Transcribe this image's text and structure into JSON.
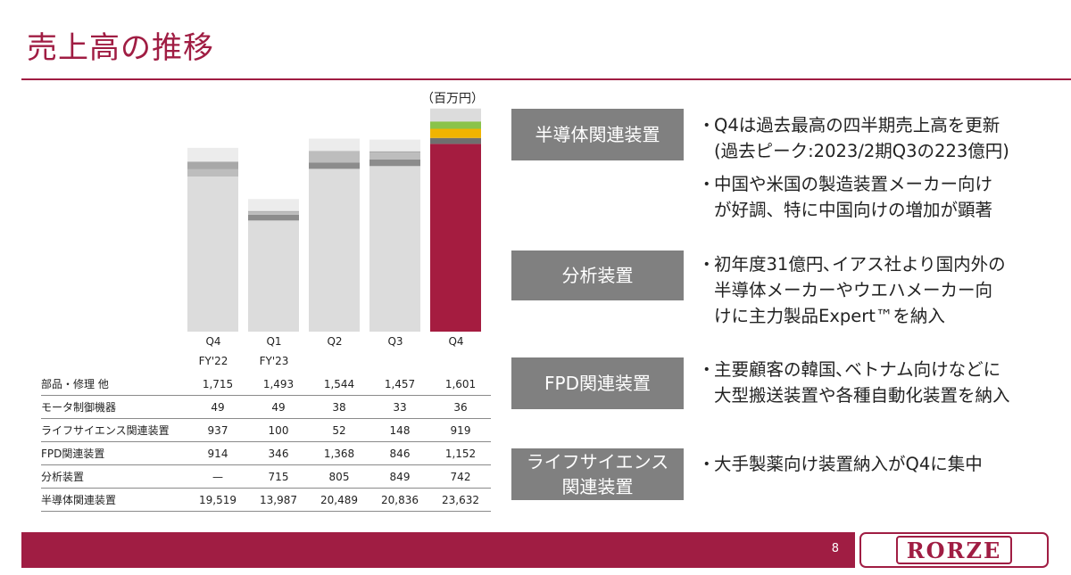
{
  "title": "売上高の推移",
  "unit_label": "（百万円）",
  "quarters": [
    {
      "q": "Q4",
      "fy": "FY'22"
    },
    {
      "q": "Q1",
      "fy": "FY'23"
    },
    {
      "q": "Q2",
      "fy": ""
    },
    {
      "q": "Q3",
      "fy": ""
    },
    {
      "q": "Q4",
      "fy": ""
    }
  ],
  "table_rows": [
    {
      "label": "部品・修理 他",
      "values": [
        "1,715",
        "1,493",
        "1,544",
        "1,457",
        "1,601"
      ]
    },
    {
      "label": "モータ制御機器",
      "values": [
        "49",
        "49",
        "38",
        "33",
        "36"
      ]
    },
    {
      "label": "ライフサイエンス関連装置",
      "values": [
        "937",
        "100",
        "52",
        "148",
        "919"
      ]
    },
    {
      "label": "FPD関連装置",
      "values": [
        "914",
        "346",
        "1,368",
        "846",
        "1,152"
      ]
    },
    {
      "label": "分析装置",
      "values": [
        "—",
        "715",
        "805",
        "849",
        "742"
      ]
    },
    {
      "label": "半導体関連装置",
      "values": [
        "19,519",
        "13,987",
        "20,489",
        "20,836",
        "23,632"
      ]
    }
  ],
  "chart_data": {
    "type": "bar",
    "stacked": true,
    "categories": [
      "Q4 FY'22",
      "Q1 FY'23",
      "Q2",
      "Q3",
      "Q4"
    ],
    "series": [
      {
        "name": "半導体関連装置",
        "values": [
          19519,
          13987,
          20489,
          20836,
          23632
        ]
      },
      {
        "name": "分析装置",
        "values": [
          0,
          715,
          805,
          849,
          742
        ]
      },
      {
        "name": "FPD関連装置",
        "values": [
          914,
          346,
          1368,
          846,
          1152
        ]
      },
      {
        "name": "ライフサイエンス関連装置",
        "values": [
          937,
          100,
          52,
          148,
          919
        ]
      },
      {
        "name": "モータ制御機器",
        "values": [
          49,
          49,
          38,
          33,
          36
        ]
      },
      {
        "name": "部品・修理 他",
        "values": [
          1715,
          1493,
          1544,
          1457,
          1601
        ]
      }
    ],
    "colors_highlight": [
      "#a51c40",
      "#6f6f6f",
      "#f0b400",
      "#8ac34a",
      "#c9c9c9",
      "#dcdcdc"
    ],
    "colors_muted": [
      "#dcdcdc",
      "#8c8c8c",
      "#bdbdbd",
      "#a8a8a8",
      "#c9c9c9",
      "#ececec"
    ],
    "highlight_index": 4,
    "ylim": [
      0,
      28500
    ]
  },
  "segments": [
    {
      "box": "半導体関連装置",
      "bullets": [
        "Q4は過去最高の四半期売上高を更新\n(過去ピーク:2023/2期Q3の223億円)",
        "中国や米国の製造装置メーカー向け\nが好調、特に中国向けの増加が顕著"
      ]
    },
    {
      "box": "分析装置",
      "bullets": [
        "初年度31億円､イアス社より国内外の\n半導体メーカーやウエハメーカー向\nけに主力製品Expert™を納入"
      ]
    },
    {
      "box": "FPD関連装置",
      "bullets": [
        "主要顧客の韓国､ベトナム向けなどに\n大型搬送装置や各種自動化装置を納入"
      ]
    },
    {
      "box": "ライフサイエンス\n関連装置",
      "bullets": [
        "大手製薬向け装置納入がQ4に集中"
      ]
    }
  ],
  "bullet_mark": "・",
  "page_number": "8",
  "logo_text": "RORZE",
  "colors": {
    "accent": "#a01d43",
    "box": "#808080"
  }
}
